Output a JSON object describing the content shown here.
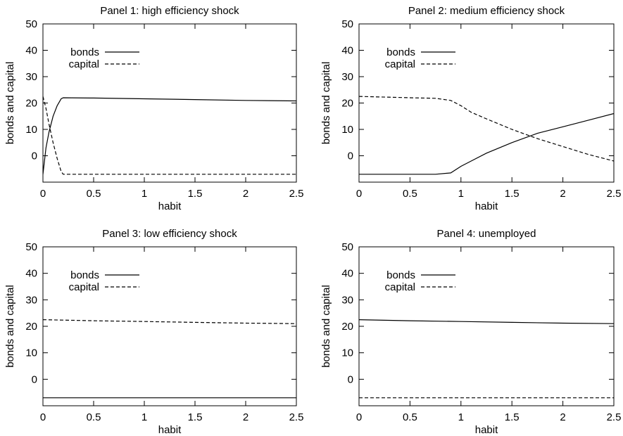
{
  "chart_data": [
    {
      "type": "line",
      "title": "Panel 1: high efficiency shock",
      "xlabel": "habit",
      "ylabel": "bonds and capital",
      "xlim": [
        0,
        2.5
      ],
      "ylim": [
        -10,
        50
      ],
      "xticks": [
        "0",
        "0.5",
        "1",
        "1.5",
        "2",
        "2.5"
      ],
      "yticks": [
        "0",
        "10",
        "20",
        "30",
        "40",
        "50"
      ],
      "ytick_values": [
        0,
        10,
        20,
        30,
        40,
        50
      ],
      "xtick_values": [
        0,
        0.5,
        1,
        1.5,
        2,
        2.5
      ],
      "grid": false,
      "legend": "top-left",
      "series": [
        {
          "name": "bonds",
          "style": "solid",
          "x": [
            0,
            0.03,
            0.06,
            0.1,
            0.14,
            0.18,
            0.2,
            0.5,
            1.0,
            1.5,
            2.0,
            2.5
          ],
          "y": [
            -7,
            3,
            9,
            15,
            19,
            21.6,
            22,
            21.9,
            21.6,
            21.3,
            21.0,
            20.8
          ]
        },
        {
          "name": "capital",
          "style": "dashed",
          "x": [
            0,
            0.03,
            0.06,
            0.1,
            0.14,
            0.18,
            0.2,
            0.5,
            1.0,
            1.5,
            2.0,
            2.5
          ],
          "y": [
            22.5,
            18,
            12,
            5,
            -1,
            -6,
            -7,
            -7,
            -7,
            -7,
            -7,
            -7
          ]
        }
      ]
    },
    {
      "type": "line",
      "title": "Panel 2: medium efficiency shock",
      "xlabel": "habit",
      "ylabel": "bonds and capital",
      "xlim": [
        0,
        2.5
      ],
      "ylim": [
        -10,
        50
      ],
      "xticks": [
        "0",
        "0.5",
        "1",
        "1.5",
        "2",
        "2.5"
      ],
      "yticks": [
        "0",
        "10",
        "20",
        "30",
        "40",
        "50"
      ],
      "ytick_values": [
        0,
        10,
        20,
        30,
        40,
        50
      ],
      "xtick_values": [
        0,
        0.5,
        1,
        1.5,
        2,
        2.5
      ],
      "grid": false,
      "legend": "top-left",
      "series": [
        {
          "name": "bonds",
          "style": "solid",
          "x": [
            0,
            0.5,
            0.75,
            0.9,
            1.0,
            1.1,
            1.25,
            1.5,
            1.75,
            2.0,
            2.25,
            2.5
          ],
          "y": [
            -7,
            -7,
            -7,
            -6.5,
            -4,
            -2,
            1,
            5,
            8.5,
            11,
            13.5,
            16
          ]
        },
        {
          "name": "capital",
          "style": "dashed",
          "x": [
            0,
            0.5,
            0.75,
            0.9,
            1.0,
            1.1,
            1.25,
            1.5,
            1.75,
            2.0,
            2.25,
            2.5
          ],
          "y": [
            22.5,
            22,
            21.8,
            21,
            19,
            16.5,
            14,
            10,
            6.5,
            3.5,
            0.5,
            -2
          ]
        }
      ]
    },
    {
      "type": "line",
      "title": "Panel 3: low efficiency shock",
      "xlabel": "habit",
      "ylabel": "bonds and capital",
      "xlim": [
        0,
        2.5
      ],
      "ylim": [
        -10,
        50
      ],
      "xticks": [
        "0",
        "0.5",
        "1",
        "1.5",
        "2",
        "2.5"
      ],
      "yticks": [
        "0",
        "10",
        "20",
        "30",
        "40",
        "50"
      ],
      "ytick_values": [
        0,
        10,
        20,
        30,
        40,
        50
      ],
      "xtick_values": [
        0,
        0.5,
        1,
        1.5,
        2,
        2.5
      ],
      "grid": false,
      "legend": "top-left",
      "series": [
        {
          "name": "bonds",
          "style": "solid",
          "x": [
            0,
            0.5,
            1.0,
            1.5,
            2.0,
            2.5
          ],
          "y": [
            -7,
            -7,
            -7,
            -7,
            -7,
            -7
          ]
        },
        {
          "name": "capital",
          "style": "dashed",
          "x": [
            0,
            0.5,
            1.0,
            1.5,
            2.0,
            2.5
          ],
          "y": [
            22.5,
            22.1,
            21.8,
            21.5,
            21.2,
            21.0
          ]
        }
      ]
    },
    {
      "type": "line",
      "title": "Panel 4: unemployed",
      "xlabel": "habit",
      "ylabel": "bonds and capital",
      "xlim": [
        0,
        2.5
      ],
      "ylim": [
        -10,
        50
      ],
      "xticks": [
        "0",
        "0.5",
        "1",
        "1.5",
        "2",
        "2.5"
      ],
      "yticks": [
        "0",
        "10",
        "20",
        "30",
        "40",
        "50"
      ],
      "ytick_values": [
        0,
        10,
        20,
        30,
        40,
        50
      ],
      "xtick_values": [
        0,
        0.5,
        1,
        1.5,
        2,
        2.5
      ],
      "grid": false,
      "legend": "top-left",
      "series": [
        {
          "name": "bonds",
          "style": "solid",
          "x": [
            0,
            0.5,
            1.0,
            1.5,
            2.0,
            2.5
          ],
          "y": [
            22.5,
            22.1,
            21.8,
            21.5,
            21.2,
            21.0
          ]
        },
        {
          "name": "capital",
          "style": "dashed",
          "x": [
            0,
            0.5,
            1.0,
            1.5,
            2.0,
            2.5
          ],
          "y": [
            -7,
            -7,
            -7,
            -7,
            -7,
            -7
          ]
        }
      ]
    }
  ]
}
